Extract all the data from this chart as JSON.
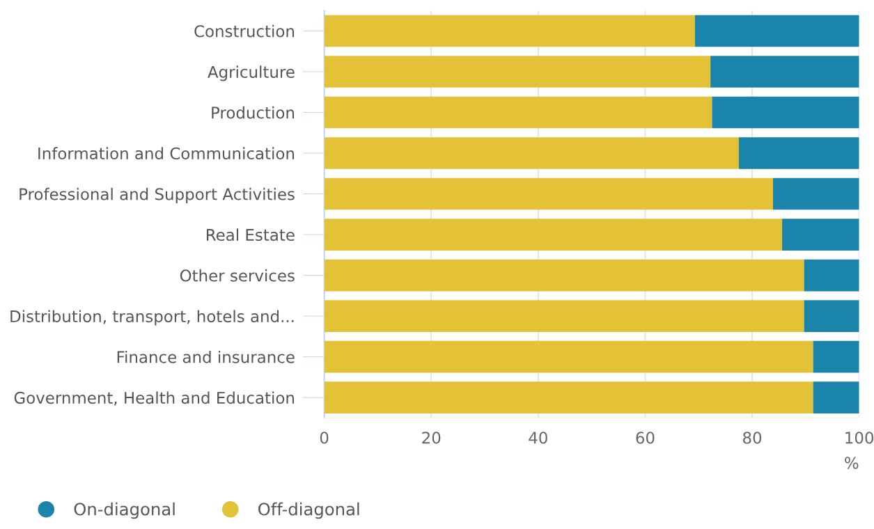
{
  "chart_data": {
    "type": "bar",
    "orientation": "horizontal",
    "stacked": true,
    "categories": [
      "Construction",
      "Agriculture",
      "Production",
      "Information and Communication",
      "Professional and Support Activities",
      "Real Estate",
      "Other services",
      "Distribution, transport, hotels and...",
      "Finance and insurance",
      "Government, Health and Education"
    ],
    "series": [
      {
        "name": "Off-diagonal",
        "color": "#e3c238",
        "values": [
          69.3,
          72.2,
          72.5,
          77.5,
          83.9,
          85.6,
          89.7,
          89.7,
          91.4,
          91.4
        ]
      },
      {
        "name": "On-diagonal",
        "color": "#1b84ab",
        "values": [
          30.7,
          27.8,
          27.5,
          22.5,
          16.1,
          14.4,
          10.3,
          10.3,
          8.6,
          8.6
        ]
      }
    ],
    "xlim": [
      0,
      100
    ],
    "xticks": [
      0,
      20,
      40,
      60,
      80,
      100
    ],
    "xlabel": "%",
    "grid": "x",
    "legend": "bottom left"
  }
}
